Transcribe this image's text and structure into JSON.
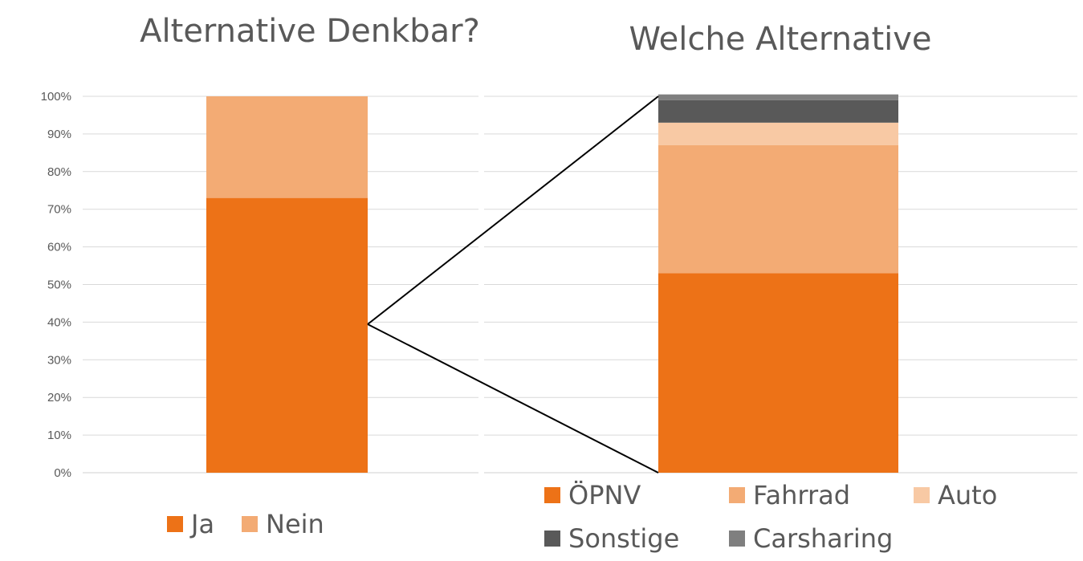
{
  "chart_data": [
    {
      "type": "bar",
      "stacked": true,
      "title": "Alternative Denkbar?",
      "categories": [
        ""
      ],
      "series": [
        {
          "name": "Ja",
          "values": [
            73
          ],
          "color": "#ED7217"
        },
        {
          "name": "Nein",
          "values": [
            27
          ],
          "color": "#F3AB74"
        }
      ],
      "ylim": [
        0,
        100
      ],
      "yticks": [
        "0%",
        "10%",
        "20%",
        "30%",
        "40%",
        "50%",
        "60%",
        "70%",
        "80%",
        "90%",
        "100%"
      ],
      "grid": true,
      "legend": "bottom"
    },
    {
      "type": "bar",
      "stacked": true,
      "title": "Welche Alternative",
      "categories": [
        ""
      ],
      "series": [
        {
          "name": "ÖPNV",
          "values": [
            53
          ],
          "color": "#ED7217"
        },
        {
          "name": "Fahrrad",
          "values": [
            34
          ],
          "color": "#F3AB74"
        },
        {
          "name": "Auto",
          "values": [
            6
          ],
          "color": "#F8C9A4"
        },
        {
          "name": "Sonstige",
          "values": [
            6
          ],
          "color": "#595959"
        },
        {
          "name": "Carsharing",
          "values": [
            1.5
          ],
          "color": "#7F7F7F"
        }
      ],
      "ylim": [
        0,
        100
      ],
      "grid": true,
      "legend": "bottom"
    }
  ]
}
